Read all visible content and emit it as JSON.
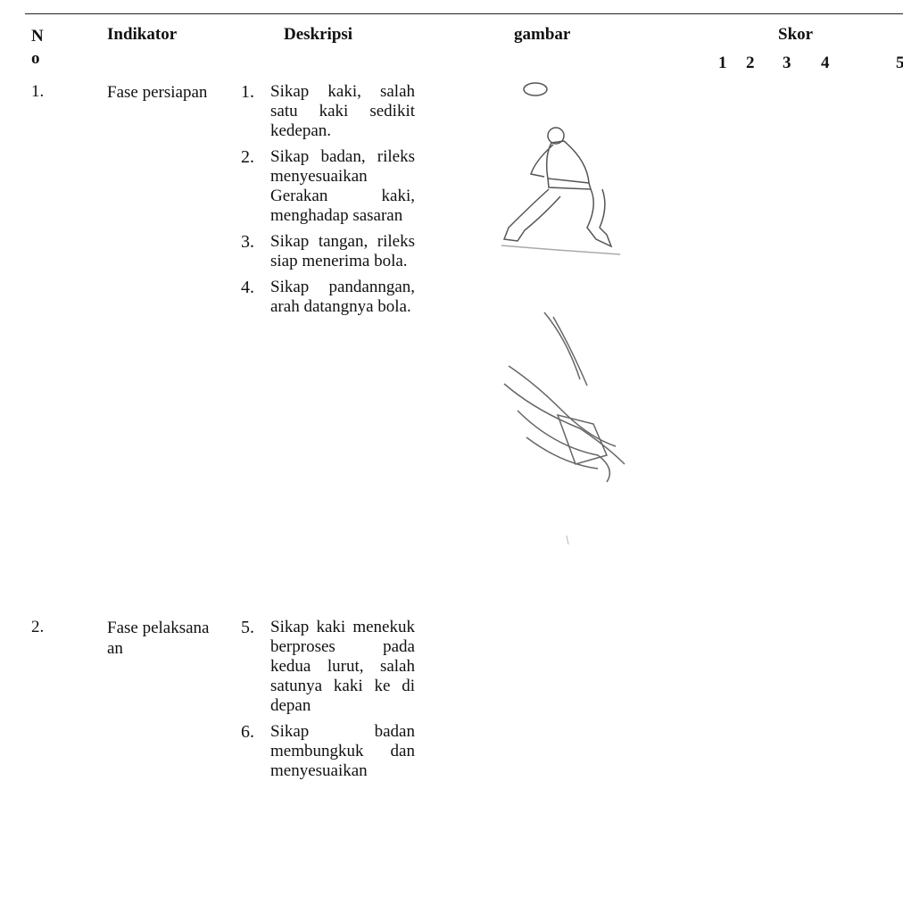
{
  "table": {
    "header": {
      "no": "No",
      "indicator": "Indikator",
      "description": "Deskripsi",
      "image": "gambar",
      "score": "Skor",
      "score_levels": [
        1,
        2,
        3,
        4,
        5
      ]
    },
    "rows": [
      {
        "no": "1.",
        "indicator": "Fase persiapan",
        "items": [
          {
            "number": "1.",
            "text": "Sikap kaki, salah satu kaki sedikit kedepan."
          },
          {
            "number": "2.",
            "text": "Sikap badan, rileks menyesuaikan Gerakan kaki, menghadap sasaran"
          },
          {
            "number": "3.",
            "text": "Sikap tangan, rileks siap menerima bola."
          },
          {
            "number": "4.",
            "text": "Sikap pandanngan, arah datangnya bola."
          }
        ]
      },
      {
        "no": "2.",
        "indicator": "Fase pelaksanaan",
        "items": [
          {
            "number": "5.",
            "text": "Sikap kaki menekuk berproses pada kedua lurut, salah satunya kaki ke di depan"
          },
          {
            "number": "6.",
            "text": "Sikap badan membungkuk dan menyesuaikan"
          }
        ]
      }
    ]
  }
}
